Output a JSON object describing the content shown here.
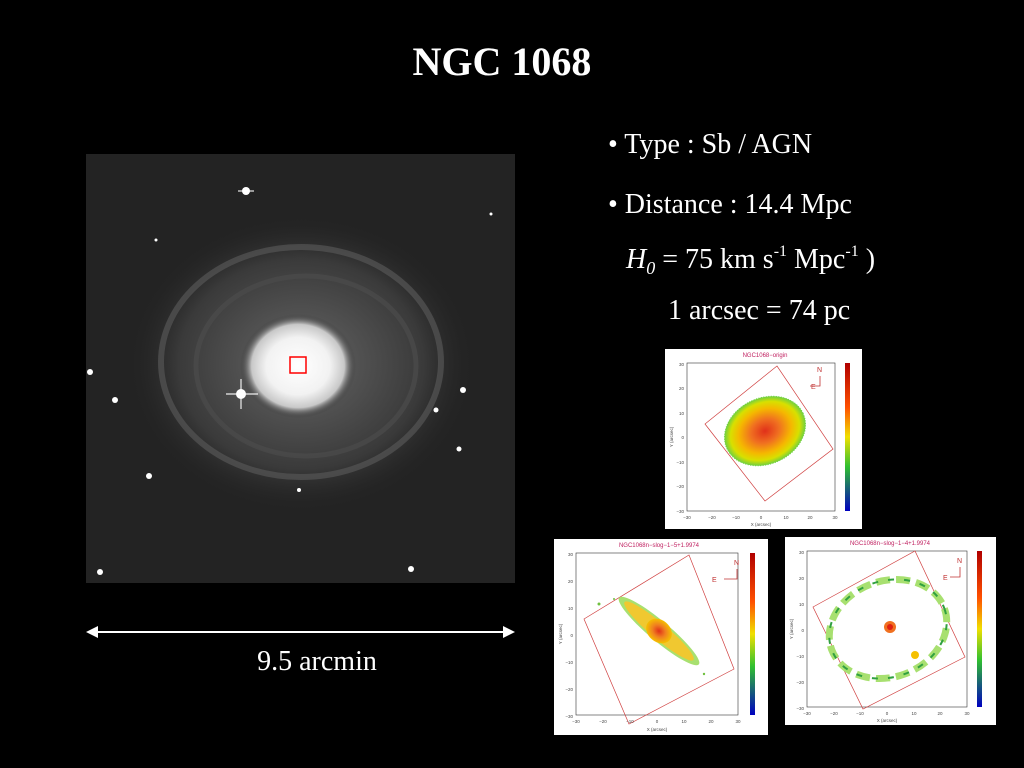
{
  "slide": {
    "title": "NGC 1068"
  },
  "info": {
    "type": "• Type : Sb / AGN",
    "distance": "• Distance : 14.4 Mpc",
    "h0_symbol": "H",
    "h0_sub": "0",
    "h0_equals": "= 75 km s",
    "h0_exp1": "-1",
    "h0_mpc": " Mpc",
    "h0_exp2": "-1",
    "h0_close": " )",
    "arcsec": "1 arcsec = 74 pc"
  },
  "scale_bar": {
    "label": "9.5 arcmin"
  },
  "panels": {
    "top": {
      "title": "NGC1068−origin"
    },
    "bottom_left": {
      "title": "NGC1068n−slog−1−5+1.9974"
    },
    "bottom_right": {
      "title": "NGC1068n−slog−1−4+1.9974"
    },
    "x_axis_label": "X (arcsec)",
    "y_axis_label": "Y (arcsec)",
    "x_ticks": [
      "−30",
      "−20",
      "−10",
      "0",
      "10",
      "20",
      "30"
    ],
    "y_ticks": [
      "30",
      "20",
      "10",
      "0",
      "−10",
      "−20",
      "−30"
    ],
    "compass_n": "N",
    "compass_e": "E"
  },
  "colors": {
    "background": "#000000",
    "box_highlight": "#ff0000"
  }
}
